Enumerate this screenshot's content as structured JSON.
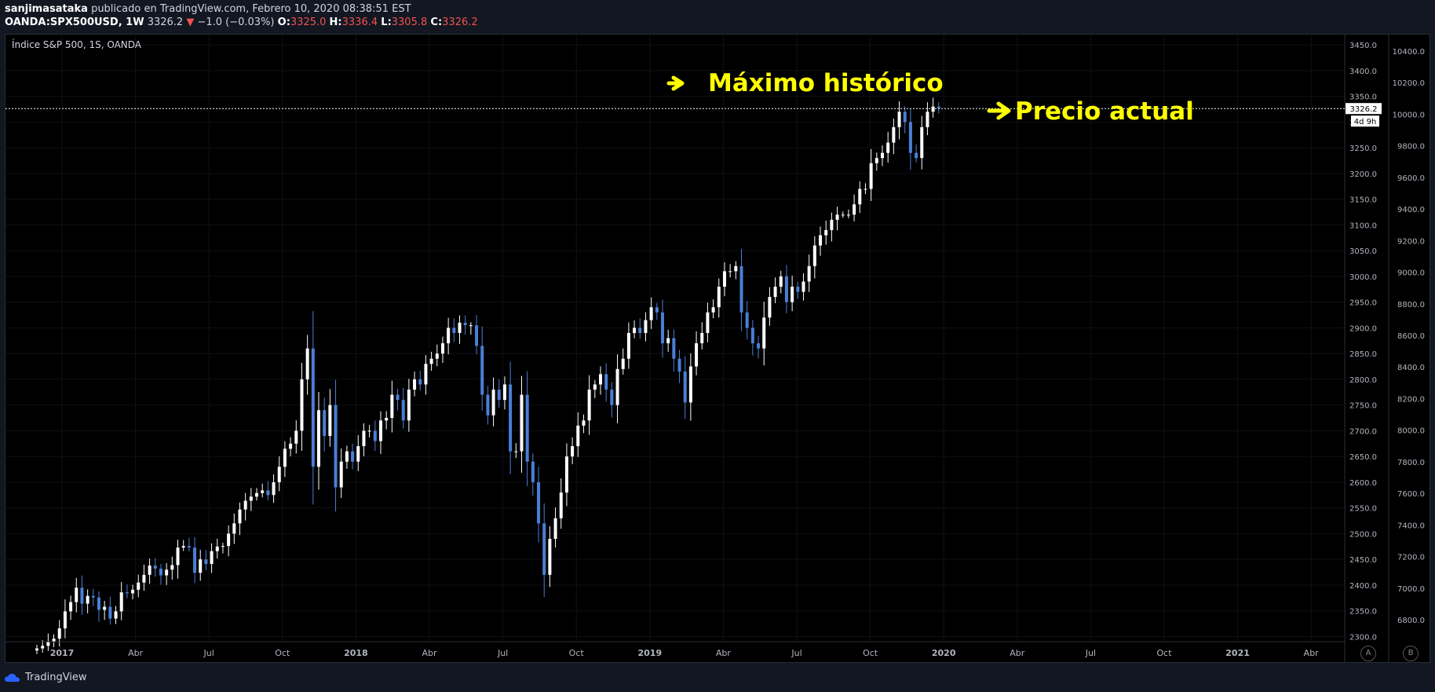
{
  "header": {
    "author": "sanjimasataka",
    "published_text": "publicado en TradingView.com, Febrero 10, 2020 08:38:51 EST",
    "symbol": "OANDA:SPX500USD, 1W",
    "last": "3326.2",
    "change": "−1.0 (−0.03%)",
    "o_label": "O:",
    "o": "3325.0",
    "h_label": "H:",
    "h": "3336.4",
    "l_label": "L:",
    "l": "3305.8",
    "c_label": "C:",
    "c": "3326.2"
  },
  "chart_title": "Índice S&P 500, 1S, OANDA",
  "price_tag": "3326.2",
  "countdown_tag": "4d 9h",
  "annotations": {
    "ath": "Máximo histórico",
    "current": "Precio actual"
  },
  "scale_buttons": [
    "A",
    "B"
  ],
  "footer_brand": "TradingView",
  "colors": {
    "up": "#ffffff",
    "down": "#4a7fd6",
    "annotation": "#ffff00",
    "background": "#000000"
  },
  "chart_data": {
    "type": "candlestick",
    "title": "Índice S&P 500, 1S, OANDA",
    "left_axis_ticks": [
      "3450.0",
      "3400.0",
      "3350.0",
      "3300.0",
      "3250.0",
      "3200.0",
      "3150.0",
      "3100.0",
      "3050.0",
      "3000.0",
      "2950.0",
      "2900.0",
      "2850.0",
      "2800.0",
      "2750.0",
      "2700.0",
      "2650.0",
      "2600.0",
      "2550.0",
      "2500.0",
      "2450.0",
      "2400.0",
      "2350.0",
      "2300.0"
    ],
    "right_axis_ticks": [
      "10400.0",
      "10200.0",
      "10000.0",
      "9800.0",
      "9600.0",
      "9400.0",
      "9200.0",
      "9000.0",
      "8800.0",
      "8600.0",
      "8400.0",
      "8200.0",
      "8000.0",
      "7800.0",
      "7600.0",
      "7400.0",
      "7200.0",
      "7000.0",
      "6800.0"
    ],
    "x_ticks": [
      "2017",
      "Abr",
      "Jul",
      "Oct",
      "2018",
      "Abr",
      "Jul",
      "Oct",
      "2019",
      "Abr",
      "Jul",
      "Oct",
      "2020",
      "Abr",
      "Jul",
      "Oct",
      "2021",
      "Abr"
    ],
    "ylim": [
      2290,
      3470
    ],
    "last_price": 3326.2,
    "ath_price": 3336.4,
    "closes": [
      2277,
      2282,
      2290,
      2296,
      2316,
      2349,
      2367,
      2395,
      2364,
      2379,
      2376,
      2352,
      2358,
      2335,
      2349,
      2386,
      2384,
      2391,
      2405,
      2420,
      2438,
      2432,
      2419,
      2430,
      2439,
      2473,
      2476,
      2473,
      2424,
      2450,
      2441,
      2466,
      2475,
      2476,
      2500,
      2520,
      2547,
      2564,
      2572,
      2579,
      2584,
      2575,
      2600,
      2630,
      2665,
      2675,
      2700,
      2800,
      2860,
      2630,
      2740,
      2690,
      2750,
      2590,
      2640,
      2660,
      2640,
      2670,
      2700,
      2700,
      2680,
      2720,
      2725,
      2770,
      2760,
      2720,
      2780,
      2800,
      2790,
      2830,
      2840,
      2850,
      2870,
      2900,
      2890,
      2910,
      2905,
      2905,
      2865,
      2770,
      2730,
      2780,
      2760,
      2790,
      2660,
      2660,
      2770,
      2640,
      2600,
      2520,
      2420,
      2490,
      2530,
      2580,
      2650,
      2670,
      2710,
      2720,
      2780,
      2790,
      2810,
      2780,
      2750,
      2820,
      2840,
      2890,
      2900,
      2890,
      2915,
      2940,
      2930,
      2870,
      2880,
      2840,
      2815,
      2755,
      2825,
      2870,
      2890,
      2930,
      2940,
      2980,
      3010,
      3010,
      3020,
      2930,
      2900,
      2870,
      2860,
      2920,
      2960,
      2980,
      3000,
      2950,
      2980,
      2970,
      2990,
      3020,
      3060,
      3080,
      3090,
      3110,
      3120,
      3120,
      3120,
      3140,
      3170,
      3170,
      3220,
      3230,
      3240,
      3260,
      3290,
      3320,
      3300,
      3240,
      3230,
      3290,
      3320,
      3330,
      3327
    ],
    "series": [
      {
        "name": "OANDA:SPX500USD",
        "values": "closes"
      }
    ]
  }
}
